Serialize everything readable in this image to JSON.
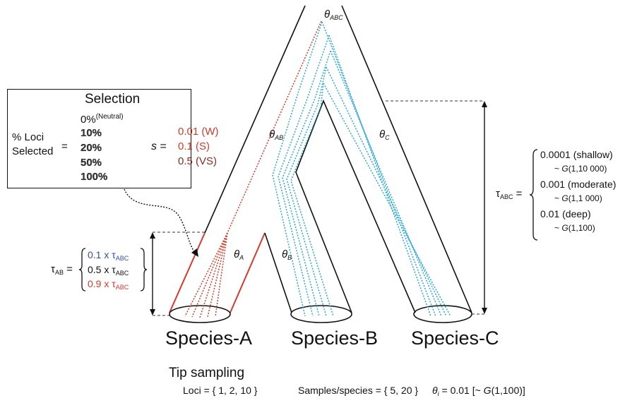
{
  "selection": {
    "title": "Selection",
    "loci_label_line1": "% Loci",
    "loci_label_line2": "Selected",
    "equals": "=",
    "pct_options": [
      "0%",
      "10%",
      "20%",
      "50%",
      "100%"
    ],
    "neutral_note": "(Neutral)",
    "s_symbol": "s",
    "s_options": [
      "0.01 (W)",
      "0.1 (S)",
      "0.5 (VS)"
    ]
  },
  "tree": {
    "theta_abc": "θ",
    "theta_abc_sub": "ABC",
    "theta_ab": "θ",
    "theta_ab_sub": "AB",
    "theta_c": "θ",
    "theta_c_sub": "C",
    "theta_a": "θ",
    "theta_a_sub": "A",
    "theta_b": "θ",
    "theta_b_sub": "B"
  },
  "tau_ab": {
    "symbol": "τ",
    "sub": "AB",
    "equals": "=",
    "options": [
      {
        "text": "0.1 x τ",
        "sub": "ABC"
      },
      {
        "text": "0.5 x τ",
        "sub": "ABC"
      },
      {
        "text": "0.9 x τ",
        "sub": "ABC"
      }
    ]
  },
  "tau_abc": {
    "symbol": "τ",
    "sub": "ABC",
    "equals": "=",
    "options": [
      {
        "value": "0.0001 (shallow)",
        "prior_prefix": "~ ",
        "prior_g": "G",
        "prior_args": "(1,10 000)"
      },
      {
        "value": "0.001 (moderate)",
        "prior_prefix": "~ ",
        "prior_g": "G",
        "prior_args": "(1,1 000)"
      },
      {
        "value": "0.01 (deep)",
        "prior_prefix": "~ ",
        "prior_g": "G",
        "prior_args": "(1,100)"
      }
    ]
  },
  "species": [
    "Species-A",
    "Species-B",
    "Species-C"
  ],
  "tip_sampling": {
    "title": "Tip sampling",
    "loci": "Loci = { 1, 2, 10 }",
    "samples": "Samples/species = { 5, 20 }",
    "theta": "θ",
    "theta_sub": "i",
    "theta_value": " = 0.01 [~ ",
    "theta_g": "G",
    "theta_args": "(1,100)]"
  },
  "colors": {
    "line": "#111111",
    "selected_lineage": "#d63a2a",
    "neutral_lineage": "#2aa7d8",
    "blue_text": "#2e4fa8"
  }
}
